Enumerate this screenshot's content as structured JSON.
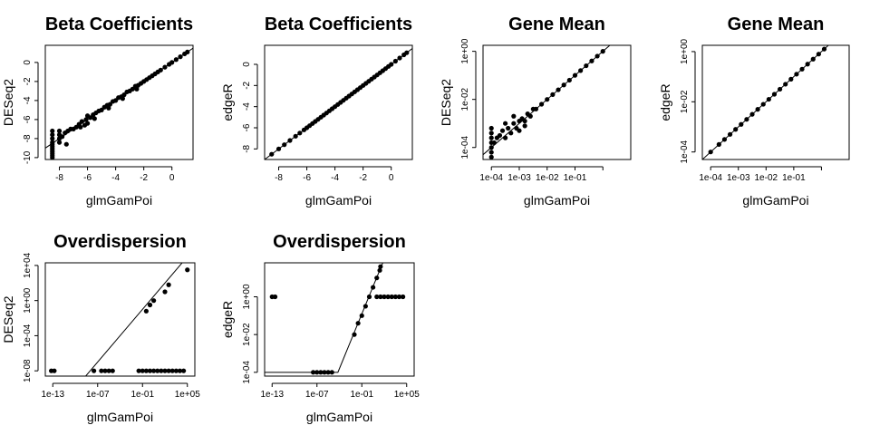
{
  "chart_data": [
    {
      "type": "scatter",
      "title": "Beta Coefficients",
      "xlabel": "glmGamPoi",
      "ylabel": "DESeq2",
      "xscale": "linear",
      "yscale": "linear",
      "xlim": [
        -9,
        1.5
      ],
      "ylim": [
        -10.2,
        1.8
      ],
      "xticks": [
        {
          "v": -8,
          "l": "-8"
        },
        {
          "v": -6,
          "l": "-6"
        },
        {
          "v": -4,
          "l": "-4"
        },
        {
          "v": -2,
          "l": "-2"
        },
        {
          "v": 0,
          "l": "0"
        }
      ],
      "yticks": [
        {
          "v": -10,
          "l": "-10"
        },
        {
          "v": -8,
          "l": "-8"
        },
        {
          "v": -6,
          "l": "-6"
        },
        {
          "v": -4,
          "l": "-4"
        },
        {
          "v": -2,
          "l": "-2"
        },
        {
          "v": 0,
          "l": "0"
        }
      ],
      "reference_line": {
        "from": [
          -9,
          -9
        ],
        "to": [
          1.5,
          1.5
        ]
      },
      "points": [
        [
          -8.5,
          -10
        ],
        [
          -8.5,
          -9.8
        ],
        [
          -8.5,
          -9.6
        ],
        [
          -8.5,
          -9.4
        ],
        [
          -8.5,
          -9.2
        ],
        [
          -8.5,
          -9.0
        ],
        [
          -8.5,
          -8.8
        ],
        [
          -8.5,
          -8.6
        ],
        [
          -8.5,
          -8.4
        ],
        [
          -8.5,
          -8.0
        ],
        [
          -8.5,
          -7.6
        ],
        [
          -8.5,
          -7.2
        ],
        [
          -8.0,
          -8.4
        ],
        [
          -8.0,
          -8.0
        ],
        [
          -8.0,
          -7.6
        ],
        [
          -8.0,
          -7.2
        ],
        [
          -7.8,
          -7.8
        ],
        [
          -7.6,
          -7.4
        ],
        [
          -7.4,
          -7.2
        ],
        [
          -7.2,
          -7.0
        ],
        [
          -7.0,
          -7.0
        ],
        [
          -6.8,
          -6.8
        ],
        [
          -6.6,
          -6.5
        ],
        [
          -6.5,
          -6.8
        ],
        [
          -6.4,
          -6.2
        ],
        [
          -6.2,
          -6.6
        ],
        [
          -6.1,
          -6.0
        ],
        [
          -6.0,
          -6.4
        ],
        [
          -5.8,
          -5.8
        ],
        [
          -5.6,
          -5.5
        ],
        [
          -5.4,
          -5.3
        ],
        [
          -5.2,
          -5.1
        ],
        [
          -5.0,
          -5.0
        ],
        [
          -4.8,
          -4.7
        ],
        [
          -4.6,
          -4.5
        ],
        [
          -4.4,
          -4.4
        ],
        [
          -4.2,
          -4.1
        ],
        [
          -4.0,
          -4.0
        ],
        [
          -3.8,
          -3.7
        ],
        [
          -3.6,
          -3.6
        ],
        [
          -3.4,
          -3.4
        ],
        [
          -3.2,
          -3.1
        ],
        [
          -3.0,
          -3.0
        ],
        [
          -2.8,
          -2.8
        ],
        [
          -2.6,
          -2.5
        ],
        [
          -2.4,
          -2.4
        ],
        [
          -2.2,
          -2.2
        ],
        [
          -2.0,
          -2.0
        ],
        [
          -1.8,
          -1.8
        ],
        [
          -1.6,
          -1.6
        ],
        [
          -1.4,
          -1.4
        ],
        [
          -1.2,
          -1.2
        ],
        [
          -1.0,
          -1.0
        ],
        [
          -0.8,
          -0.8
        ],
        [
          -0.5,
          -0.5
        ],
        [
          -0.2,
          -0.2
        ],
        [
          0.0,
          0.0
        ],
        [
          0.3,
          0.3
        ],
        [
          0.6,
          0.6
        ],
        [
          0.9,
          0.9
        ],
        [
          1.1,
          1.1
        ],
        [
          -7.5,
          -8.6
        ],
        [
          -6.0,
          -5.6
        ],
        [
          -5.5,
          -5.9
        ],
        [
          -4.5,
          -4.8
        ],
        [
          -3.5,
          -3.8
        ],
        [
          -2.5,
          -2.8
        ]
      ]
    },
    {
      "type": "scatter",
      "title": "Beta Coefficients",
      "xlabel": "glmGamPoi",
      "ylabel": "edgeR",
      "xscale": "linear",
      "yscale": "linear",
      "xlim": [
        -9,
        1.5
      ],
      "ylim": [
        -9,
        1.8
      ],
      "xticks": [
        {
          "v": -8,
          "l": "-8"
        },
        {
          "v": -6,
          "l": "-6"
        },
        {
          "v": -4,
          "l": "-4"
        },
        {
          "v": -2,
          "l": "-2"
        },
        {
          "v": 0,
          "l": "0"
        }
      ],
      "yticks": [
        {
          "v": -8,
          "l": "-8"
        },
        {
          "v": -6,
          "l": "-6"
        },
        {
          "v": -4,
          "l": "-4"
        },
        {
          "v": -2,
          "l": "-2"
        },
        {
          "v": 0,
          "l": "0"
        }
      ],
      "reference_line": {
        "from": [
          -9,
          -9
        ],
        "to": [
          1.5,
          1.5
        ]
      },
      "points": [
        [
          -8.5,
          -8.5
        ],
        [
          -8.0,
          -8.0
        ],
        [
          -7.6,
          -7.6
        ],
        [
          -7.2,
          -7.2
        ],
        [
          -6.8,
          -6.8
        ],
        [
          -6.5,
          -6.5
        ],
        [
          -6.2,
          -6.2
        ],
        [
          -6.0,
          -6.0
        ],
        [
          -5.8,
          -5.8
        ],
        [
          -5.6,
          -5.6
        ],
        [
          -5.4,
          -5.4
        ],
        [
          -5.2,
          -5.2
        ],
        [
          -5.0,
          -5.0
        ],
        [
          -4.8,
          -4.8
        ],
        [
          -4.6,
          -4.6
        ],
        [
          -4.4,
          -4.4
        ],
        [
          -4.2,
          -4.2
        ],
        [
          -4.0,
          -4.0
        ],
        [
          -3.8,
          -3.8
        ],
        [
          -3.6,
          -3.6
        ],
        [
          -3.4,
          -3.4
        ],
        [
          -3.2,
          -3.2
        ],
        [
          -3.0,
          -3.0
        ],
        [
          -2.8,
          -2.8
        ],
        [
          -2.6,
          -2.6
        ],
        [
          -2.4,
          -2.4
        ],
        [
          -2.2,
          -2.2
        ],
        [
          -2.0,
          -2.0
        ],
        [
          -1.8,
          -1.8
        ],
        [
          -1.6,
          -1.6
        ],
        [
          -1.4,
          -1.4
        ],
        [
          -1.2,
          -1.2
        ],
        [
          -1.0,
          -1.0
        ],
        [
          -0.8,
          -0.8
        ],
        [
          -0.6,
          -0.6
        ],
        [
          -0.4,
          -0.4
        ],
        [
          -0.2,
          -0.2
        ],
        [
          0.0,
          0.0
        ],
        [
          0.3,
          0.3
        ],
        [
          0.6,
          0.6
        ],
        [
          0.9,
          0.9
        ],
        [
          1.1,
          1.1
        ]
      ]
    },
    {
      "type": "scatter",
      "title": "Gene Mean",
      "xlabel": "glmGamPoi",
      "ylabel": "DESeq2",
      "xscale": "log10",
      "yscale": "log10",
      "xlim": [
        -4.3,
        1.0
      ],
      "ylim": [
        -4.5,
        0.25
      ],
      "xticks": [
        {
          "v": -4,
          "l": "1e-04"
        },
        {
          "v": -3,
          "l": "1e-03"
        },
        {
          "v": -2,
          "l": "1e-02"
        },
        {
          "v": -1,
          "l": "1e-01"
        },
        {
          "v": 0,
          "l": ""
        }
      ],
      "yticks": [
        {
          "v": -4,
          "l": "1e-04"
        },
        {
          "v": -2,
          "l": "1e-02"
        },
        {
          "v": 0,
          "l": "1e+00"
        }
      ],
      "reference_line": {
        "from": [
          -4.3,
          -4.3
        ],
        "to": [
          1.0,
          1.0
        ]
      },
      "points": [
        [
          -4.0,
          -4.4
        ],
        [
          -4.0,
          -4.2
        ],
        [
          -4.0,
          -4.0
        ],
        [
          -4.0,
          -3.8
        ],
        [
          -4.0,
          -3.6
        ],
        [
          -4.0,
          -3.4
        ],
        [
          -4.0,
          -3.2
        ],
        [
          -3.9,
          -3.8
        ],
        [
          -3.8,
          -3.6
        ],
        [
          -3.7,
          -3.5
        ],
        [
          -3.6,
          -3.3
        ],
        [
          -3.5,
          -3.6
        ],
        [
          -3.4,
          -3.2
        ],
        [
          -3.3,
          -3.4
        ],
        [
          -3.2,
          -3.0
        ],
        [
          -3.1,
          -3.2
        ],
        [
          -3.0,
          -2.9
        ],
        [
          -3.0,
          -3.3
        ],
        [
          -2.9,
          -2.8
        ],
        [
          -2.8,
          -2.9
        ],
        [
          -2.7,
          -2.6
        ],
        [
          -2.6,
          -2.7
        ],
        [
          -2.5,
          -2.4
        ],
        [
          -2.4,
          -2.4
        ],
        [
          -2.2,
          -2.2
        ],
        [
          -2.0,
          -2.0
        ],
        [
          -1.8,
          -1.8
        ],
        [
          -1.6,
          -1.6
        ],
        [
          -1.4,
          -1.4
        ],
        [
          -1.2,
          -1.2
        ],
        [
          -1.0,
          -1.0
        ],
        [
          -0.8,
          -0.8
        ],
        [
          -0.6,
          -0.6
        ],
        [
          -0.4,
          -0.4
        ],
        [
          -0.2,
          -0.2
        ],
        [
          0.0,
          0.0
        ],
        [
          -3.5,
          -3.0
        ],
        [
          -3.2,
          -2.7
        ],
        [
          -2.8,
          -3.1
        ]
      ]
    },
    {
      "type": "scatter",
      "title": "Gene Mean",
      "xlabel": "glmGamPoi",
      "ylabel": "edgeR",
      "xscale": "log10",
      "yscale": "log10",
      "xlim": [
        -4.3,
        1.0
      ],
      "ylim": [
        -4.3,
        0.25
      ],
      "xticks": [
        {
          "v": -4,
          "l": "1e-04"
        },
        {
          "v": -3,
          "l": "1e-03"
        },
        {
          "v": -2,
          "l": "1e-02"
        },
        {
          "v": -1,
          "l": "1e-01"
        },
        {
          "v": 0,
          "l": ""
        }
      ],
      "yticks": [
        {
          "v": -4,
          "l": "1e-04"
        },
        {
          "v": -2,
          "l": "1e-02"
        },
        {
          "v": 0,
          "l": "1e+00"
        }
      ],
      "reference_line": {
        "from": [
          -4.3,
          -4.3
        ],
        "to": [
          1.0,
          1.0
        ]
      },
      "points": [
        [
          -4.0,
          -4.0
        ],
        [
          -3.7,
          -3.7
        ],
        [
          -3.5,
          -3.5
        ],
        [
          -3.3,
          -3.3
        ],
        [
          -3.1,
          -3.1
        ],
        [
          -2.9,
          -2.9
        ],
        [
          -2.7,
          -2.7
        ],
        [
          -2.5,
          -2.5
        ],
        [
          -2.3,
          -2.3
        ],
        [
          -2.1,
          -2.1
        ],
        [
          -1.9,
          -1.9
        ],
        [
          -1.7,
          -1.7
        ],
        [
          -1.5,
          -1.5
        ],
        [
          -1.3,
          -1.3
        ],
        [
          -1.1,
          -1.1
        ],
        [
          -0.9,
          -0.9
        ],
        [
          -0.7,
          -0.7
        ],
        [
          -0.5,
          -0.5
        ],
        [
          -0.3,
          -0.3
        ],
        [
          -0.1,
          -0.1
        ],
        [
          0.1,
          0.1
        ]
      ]
    },
    {
      "type": "scatter",
      "title": "Overdispersion",
      "xlabel": "glmGamPoi",
      "ylabel": "DESeq2",
      "xscale": "log10",
      "yscale": "log10",
      "xlim": [
        -14,
        6
      ],
      "ylim": [
        -8.6,
        4.3
      ],
      "xticks": [
        {
          "v": -13,
          "l": "1e-13"
        },
        {
          "v": -7,
          "l": "1e-07"
        },
        {
          "v": -1,
          "l": "1e-01"
        },
        {
          "v": 5,
          "l": "1e+05"
        }
      ],
      "yticks": [
        {
          "v": -8,
          "l": "1e-08"
        },
        {
          "v": -4,
          "l": "1e-04"
        },
        {
          "v": 0,
          "l": "1e+00"
        },
        {
          "v": 4,
          "l": "1e+04"
        }
      ],
      "reference_line": {
        "from": [
          -14,
          -14
        ],
        "to": [
          6,
          6
        ]
      },
      "points": [
        [
          -13.2,
          -8
        ],
        [
          -12.8,
          -8
        ],
        [
          -7.5,
          -8
        ],
        [
          -6.5,
          -8
        ],
        [
          -6.0,
          -8
        ],
        [
          -5.5,
          -8
        ],
        [
          -5.0,
          -8
        ],
        [
          -1.5,
          -8
        ],
        [
          -1.0,
          -8
        ],
        [
          -0.5,
          -8
        ],
        [
          0.0,
          -8
        ],
        [
          0.5,
          -8
        ],
        [
          1.0,
          -8
        ],
        [
          1.5,
          -8
        ],
        [
          2.0,
          -8
        ],
        [
          2.5,
          -8
        ],
        [
          3.0,
          -8
        ],
        [
          3.5,
          -8
        ],
        [
          4.0,
          -8
        ],
        [
          4.5,
          -8
        ],
        [
          -0.5,
          -1.2
        ],
        [
          0,
          -0.5
        ],
        [
          0.5,
          0.0
        ],
        [
          2.0,
          1.0
        ],
        [
          2.5,
          1.8
        ],
        [
          5.0,
          3.5
        ]
      ]
    },
    {
      "type": "scatter",
      "title": "Overdispersion",
      "xlabel": "glmGamPoi",
      "ylabel": "edgeR",
      "xscale": "log10",
      "yscale": "log10",
      "xlim": [
        -14,
        6
      ],
      "ylim": [
        -4.2,
        1.8
      ],
      "xticks": [
        {
          "v": -13,
          "l": "1e-13"
        },
        {
          "v": -7,
          "l": "1e-07"
        },
        {
          "v": -1,
          "l": "1e-01"
        },
        {
          "v": 5,
          "l": "1e+05"
        }
      ],
      "yticks": [
        {
          "v": -4,
          "l": "1e-04"
        },
        {
          "v": -2,
          "l": "1e-02"
        },
        {
          "v": 0,
          "l": "1e+00"
        }
      ],
      "reference_line": {
        "points": [
          [
            -14,
            -4
          ],
          [
            -4.2,
            -4
          ],
          [
            1.8,
            1.8
          ]
        ]
      },
      "points": [
        [
          -13.0,
          0
        ],
        [
          -12.6,
          0
        ],
        [
          -7.5,
          -4
        ],
        [
          -7.0,
          -4
        ],
        [
          -6.5,
          -4
        ],
        [
          -6.0,
          -4
        ],
        [
          -5.5,
          -4
        ],
        [
          -5.0,
          -4
        ],
        [
          -2.0,
          -2.0
        ],
        [
          -1.5,
          -1.4
        ],
        [
          -1.0,
          -1.0
        ],
        [
          -0.5,
          -0.5
        ],
        [
          0.0,
          0.0
        ],
        [
          0.5,
          0.5
        ],
        [
          1.0,
          1.0
        ],
        [
          1.4,
          1.4
        ],
        [
          1.5,
          1.6
        ],
        [
          1.0,
          0
        ],
        [
          1.5,
          0
        ],
        [
          2.0,
          0
        ],
        [
          2.5,
          0
        ],
        [
          3.0,
          0
        ],
        [
          3.5,
          0
        ],
        [
          4.0,
          0
        ],
        [
          4.5,
          0
        ]
      ]
    }
  ]
}
